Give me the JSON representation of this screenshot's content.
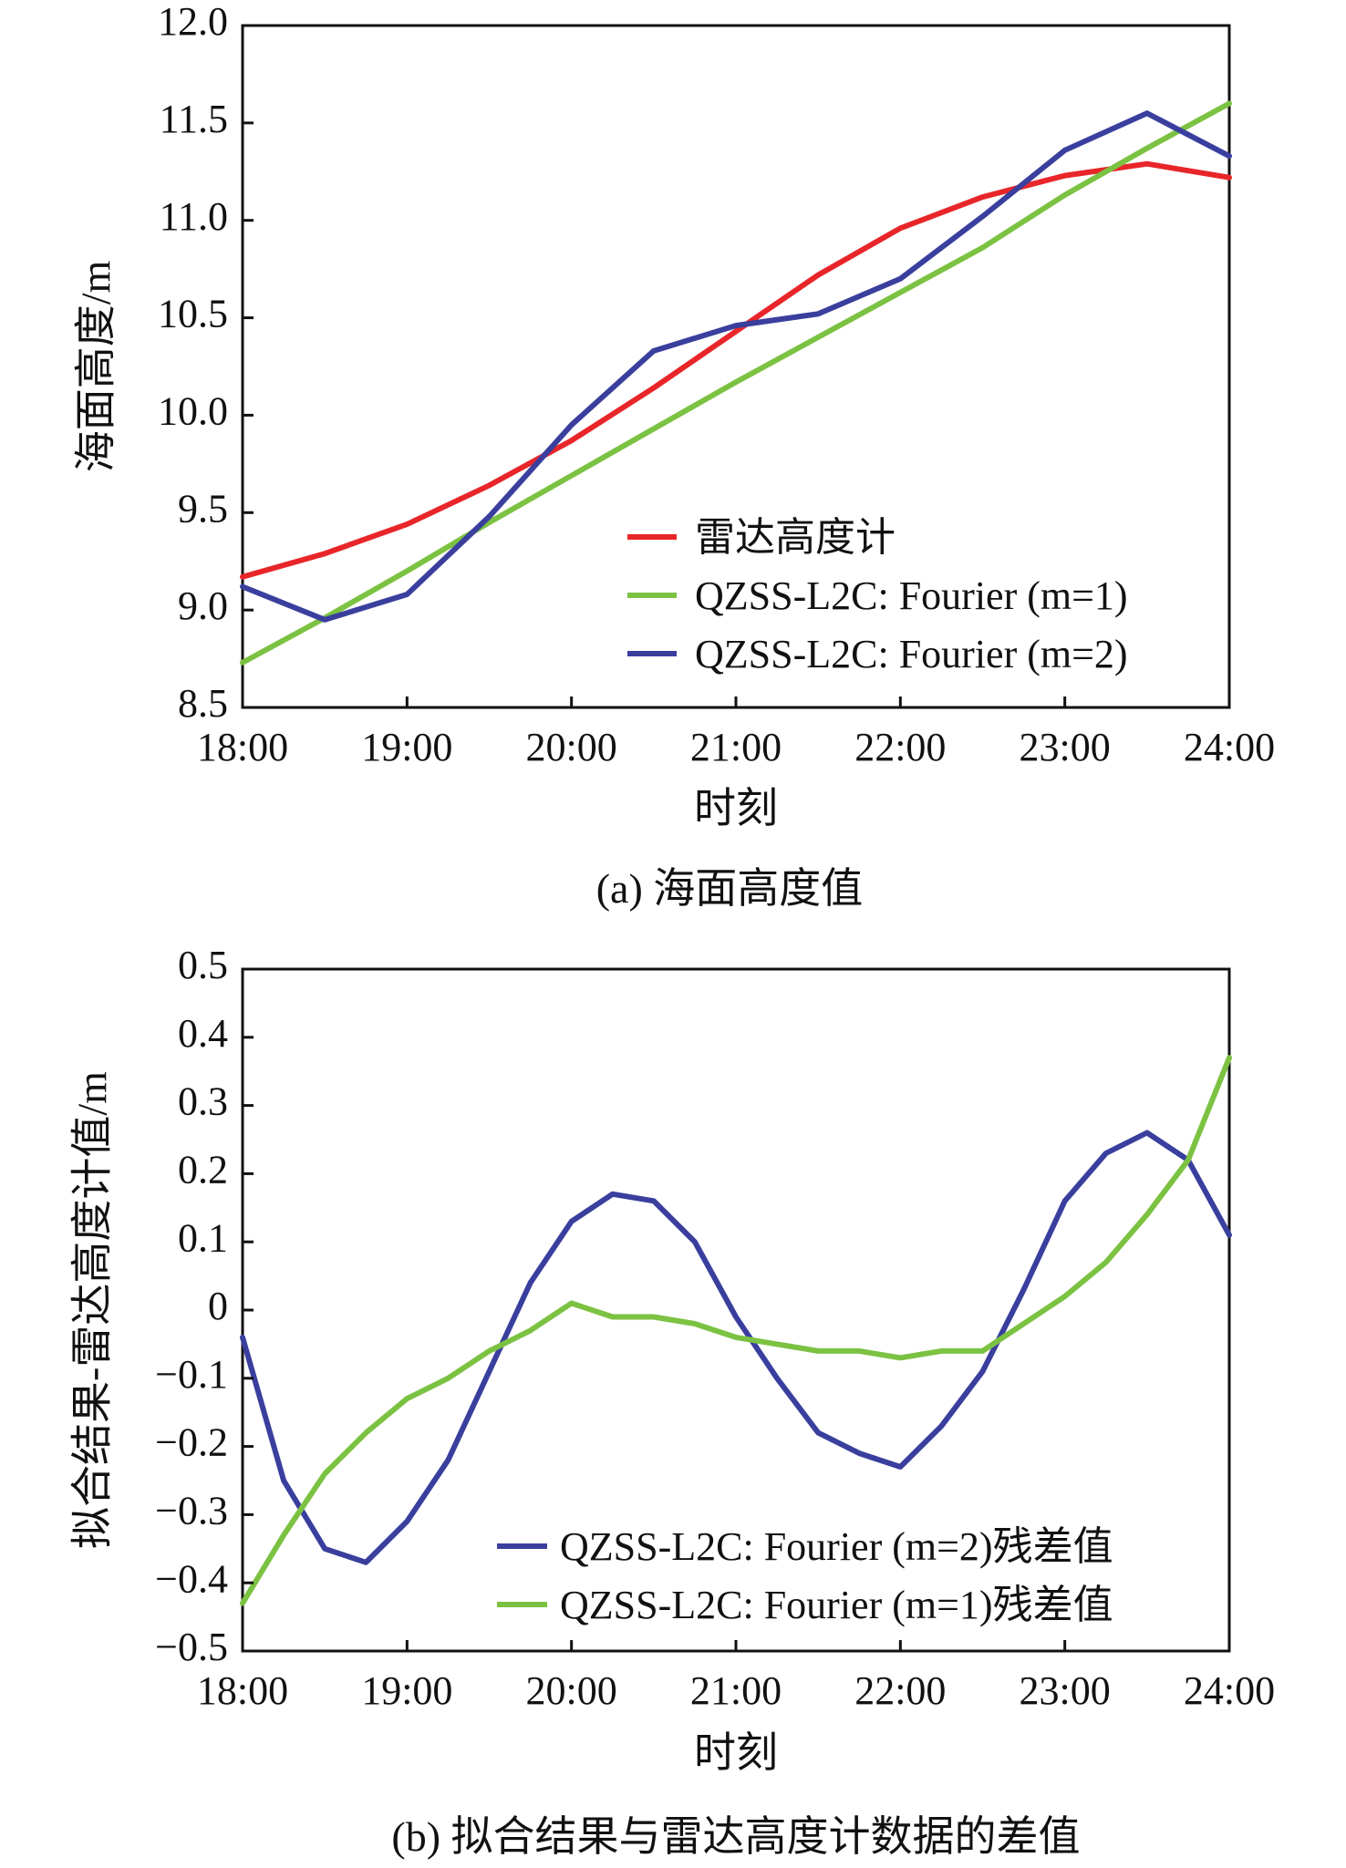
{
  "chart_data": [
    {
      "type": "line",
      "caption": "(a) 海面高度值",
      "xlabel": "时刻",
      "ylabel": "海面高度/m",
      "xlim": [
        "18:00",
        "24:00"
      ],
      "ylim": [
        8.5,
        12.0
      ],
      "x_ticks": [
        "18:00",
        "19:00",
        "20:00",
        "21:00",
        "22:00",
        "23:00",
        "24:00"
      ],
      "y_ticks": [
        "8.5",
        "9.0",
        "9.5",
        "10.0",
        "10.5",
        "11.0",
        "11.5",
        "12.0"
      ],
      "grid": false,
      "legend_position": "lower-right",
      "x": [
        "18:00",
        "18:30",
        "19:00",
        "19:30",
        "20:00",
        "20:30",
        "21:00",
        "21:30",
        "22:00",
        "22:30",
        "23:00",
        "23:30",
        "24:00"
      ],
      "series": [
        {
          "name": "雷达高度计",
          "color": "#e8262a",
          "values": [
            9.17,
            9.29,
            9.44,
            9.64,
            9.87,
            10.14,
            10.43,
            10.72,
            10.96,
            11.12,
            11.23,
            11.29,
            11.22
          ]
        },
        {
          "name": "QZSS-L2C: Fourier (m=1)",
          "color": "#7cc242",
          "values": [
            8.73,
            8.96,
            9.2,
            9.45,
            9.69,
            9.93,
            10.17,
            10.4,
            10.63,
            10.86,
            11.13,
            11.37,
            11.6
          ]
        },
        {
          "name": "QZSS-L2C: Fourier (m=2)",
          "color": "#3a3f9e",
          "values": [
            9.12,
            8.95,
            9.08,
            9.48,
            9.95,
            10.33,
            10.46,
            10.52,
            10.7,
            11.02,
            11.36,
            11.55,
            11.33
          ]
        }
      ]
    },
    {
      "type": "line",
      "caption": "(b) 拟合结果与雷达高度计数据的差值",
      "xlabel": "时刻",
      "ylabel": "拟合结果-雷达高度计值/m",
      "xlim": [
        "18:00",
        "24:00"
      ],
      "ylim": [
        -0.5,
        0.5
      ],
      "x_ticks": [
        "18:00",
        "19:00",
        "20:00",
        "21:00",
        "22:00",
        "23:00",
        "24:00"
      ],
      "y_ticks": [
        "−0.5",
        "−0.4",
        "−0.3",
        "−0.2",
        "−0.1",
        "0",
        "0.1",
        "0.2",
        "0.3",
        "0.4",
        "0.5"
      ],
      "grid": false,
      "legend_position": "lower-right",
      "x": [
        "18:00",
        "18:15",
        "18:30",
        "18:45",
        "19:00",
        "19:15",
        "19:30",
        "19:45",
        "20:00",
        "20:15",
        "20:30",
        "20:45",
        "21:00",
        "21:15",
        "21:30",
        "21:45",
        "22:00",
        "22:15",
        "22:30",
        "22:45",
        "23:00",
        "23:15",
        "23:30",
        "23:45",
        "24:00"
      ],
      "series": [
        {
          "name": "QZSS-L2C: Fourier (m=2)残差值",
          "color": "#3a3f9e",
          "values": [
            -0.04,
            -0.25,
            -0.35,
            -0.37,
            -0.31,
            -0.22,
            -0.09,
            0.04,
            0.13,
            0.17,
            0.16,
            0.1,
            -0.01,
            -0.1,
            -0.18,
            -0.21,
            -0.23,
            -0.17,
            -0.09,
            0.03,
            0.16,
            0.23,
            0.26,
            0.22,
            0.11
          ]
        },
        {
          "name": "QZSS-L2C: Fourier (m=1)残差值",
          "color": "#7cc242",
          "values": [
            -0.43,
            -0.33,
            -0.24,
            -0.18,
            -0.13,
            -0.1,
            -0.06,
            -0.03,
            0.01,
            -0.01,
            -0.01,
            -0.02,
            -0.04,
            -0.05,
            -0.06,
            -0.06,
            -0.07,
            -0.06,
            -0.06,
            -0.02,
            0.02,
            0.07,
            0.14,
            0.22,
            0.37
          ]
        }
      ]
    }
  ]
}
